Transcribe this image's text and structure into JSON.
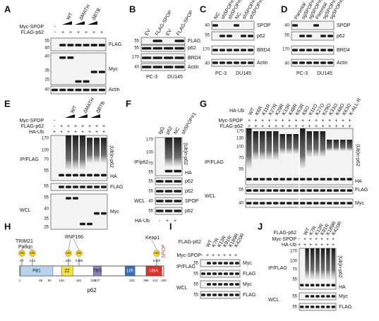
{
  "panels": [
    {
      "letter": "A",
      "lanes": [
        "WT",
        "ΔMATH",
        "ΔBTB"
      ],
      "rows": [
        {
          "label": "Myc-SPOP",
          "signs": [
            "-"
          ]
        },
        {
          "label": "FLAG-p62",
          "signs": [
            "-",
            "+",
            "+",
            "+",
            "+",
            "+",
            "+"
          ]
        }
      ],
      "markers": [
        "55",
        "40",
        "40",
        "35",
        "25",
        "40"
      ],
      "right": [
        "FLAG",
        "Myc",
        "Actin"
      ]
    },
    {
      "letter": "B",
      "lanes": [
        "EV",
        "FLAG-SPOP",
        "EV",
        "FLAG-SPOP"
      ],
      "markers": [
        "55",
        "55",
        "170",
        "40"
      ],
      "right": [
        "FLAG",
        "p62",
        "BRD4",
        "Actin"
      ],
      "bottom": [
        "PC-3",
        "DU145"
      ]
    },
    {
      "letter": "C",
      "lanes": [
        "NC",
        "shSPOP#1",
        "shSPOP#2",
        "NC",
        "shSPOP#1",
        "shSPOP#2"
      ],
      "markers": [
        "40",
        "55",
        "170",
        "40"
      ],
      "right": [
        "SPOP",
        "p62",
        "BRD4",
        "Actin"
      ],
      "bottom": [
        "PC-3",
        "DU145"
      ]
    },
    {
      "letter": "D",
      "lanes": [
        "Parental",
        "sgSPOP#1",
        "sgSPOP#2",
        "Parental",
        "sgSPOP#1",
        "sgSPOP#2"
      ],
      "markers": [
        "40",
        "55",
        "170",
        "40"
      ],
      "right": [
        "SPOP",
        "p62",
        "BRD4",
        "Actin"
      ],
      "bottom": [
        "PC-3",
        "DU145"
      ]
    },
    {
      "letter": "E",
      "lanes": [
        "WT",
        "ΔMATH",
        "ΔBTB"
      ],
      "rows": [
        {
          "label": "Myc-SPOP",
          "signs": [
            "-"
          ]
        },
        {
          "label": "FLAG-p62",
          "signs": [
            "-",
            "+",
            "+",
            "+",
            "+",
            "+",
            "+",
            "+"
          ]
        },
        {
          "label": "HA-Ub",
          "signs": [
            "+",
            "+",
            "+",
            "+",
            "+",
            "+",
            "+",
            "+"
          ]
        }
      ],
      "left": [
        "IP/FLAG",
        "WCL"
      ],
      "markers": [
        "170",
        "100",
        "70",
        "55",
        "55",
        "55",
        "40",
        "35",
        "25"
      ],
      "right": [
        "(Ub)n-p62",
        "HA",
        "FLAG",
        "Myc"
      ]
    },
    {
      "letter": "F",
      "lanes": [
        "IgG",
        "p62",
        "NC",
        "shSPOP#1"
      ],
      "rows": [
        {
          "label": "HA-Ub",
          "signs": [
            "-",
            "+",
            "+"
          ]
        }
      ],
      "left": [
        "IP/p62",
        "WCL"
      ],
      "markers": [
        "170",
        "100",
        "70",
        "55",
        "55",
        "55",
        "40",
        "55"
      ],
      "right": [
        "(Ub)n-p62",
        "HA",
        "p62",
        "p62",
        "SPOP",
        "p62"
      ]
    },
    {
      "letter": "G",
      "heading": "HA-Ub",
      "lanes": [
        "WT",
        "K6R",
        "K11R",
        "K27R",
        "K29R",
        "K33R",
        "K48R",
        "K63R",
        "K6O",
        "K11O",
        "K27O",
        "K29O",
        "K33O",
        "K48O",
        "K63O",
        "K-ALL-R"
      ],
      "rows": [
        {
          "label": "Myc-SPOP",
          "signs": [
            "+",
            "+",
            "+",
            "+",
            "+",
            "+",
            "+",
            "+",
            "+",
            "+",
            "+",
            "+",
            "+",
            "+",
            "+",
            "+"
          ]
        },
        {
          "label": "FLAG-p62",
          "signs": [
            "+",
            "+",
            "+",
            "+",
            "+",
            "+",
            "+",
            "+",
            "+",
            "+",
            "+",
            "+",
            "+",
            "+",
            "+",
            "+"
          ]
        }
      ],
      "left": [
        "IP/FLAG",
        "WCL"
      ],
      "markers": [
        "170",
        "130",
        "100",
        "70",
        "55",
        "55",
        "40"
      ],
      "right": [
        "(Ub)n-p62",
        "HA",
        "FLAG",
        "Myc"
      ]
    },
    {
      "letter": "H",
      "ligases": [
        "TRIM21",
        "Parkin",
        "RNF166",
        "Keap1",
        "SPOP"
      ],
      "sites": [
        {
          "ub": "Ub",
          "site": "K7"
        },
        {
          "ub": "Ub",
          "site": "K13"
        },
        {
          "ub": "Ub",
          "site": "K91"
        },
        {
          "ub": "Ub",
          "site": "K189"
        },
        {
          "ub": "Ub",
          "site": "K420"
        }
      ],
      "domains": [
        "PB1",
        "ZZ",
        "TBS",
        "LIR",
        "UBA"
      ],
      "residues": [
        "1",
        "65",
        "92",
        "128",
        "181",
        "225",
        "237",
        "343",
        "386",
        "414",
        "440"
      ],
      "protein": "p62"
    },
    {
      "letter": "I",
      "lanes": [
        "WT",
        "K7R",
        "K13R",
        "K91R",
        "K189R",
        "K420R"
      ],
      "rows": [
        {
          "label": "FLAG-p62"
        },
        {
          "label": "Myc-SPOP",
          "signs": [
            "-",
            "+",
            "+",
            "+",
            "+",
            "+",
            "+"
          ]
        }
      ],
      "left": [
        "IP/FLAG",
        "WCL"
      ],
      "markers": [
        "55",
        "55",
        "55",
        "55"
      ],
      "right": [
        "Myc",
        "FLAG",
        "Myc",
        "FLAG"
      ]
    },
    {
      "letter": "J",
      "lanes": [
        "WT",
        "K7R",
        "K13R",
        "K91R",
        "K189R",
        "K420R"
      ],
      "rows": [
        {
          "label": "FLAG-p62"
        },
        {
          "label": "Myc-SPOP",
          "signs": [
            "-",
            "+",
            "+",
            "+",
            "+",
            "+",
            "+"
          ]
        },
        {
          "label": "HA-Ub",
          "signs": [
            "+",
            "+",
            "+",
            "+",
            "+",
            "+",
            "+"
          ]
        }
      ],
      "left": [
        "IP/FLAG",
        "WCL"
      ],
      "markers": [
        "170",
        "100",
        "70",
        "55",
        "55",
        "55"
      ],
      "right": [
        "(Ub)n-p62",
        "HA",
        "Myc",
        "FLAG"
      ]
    }
  ]
}
